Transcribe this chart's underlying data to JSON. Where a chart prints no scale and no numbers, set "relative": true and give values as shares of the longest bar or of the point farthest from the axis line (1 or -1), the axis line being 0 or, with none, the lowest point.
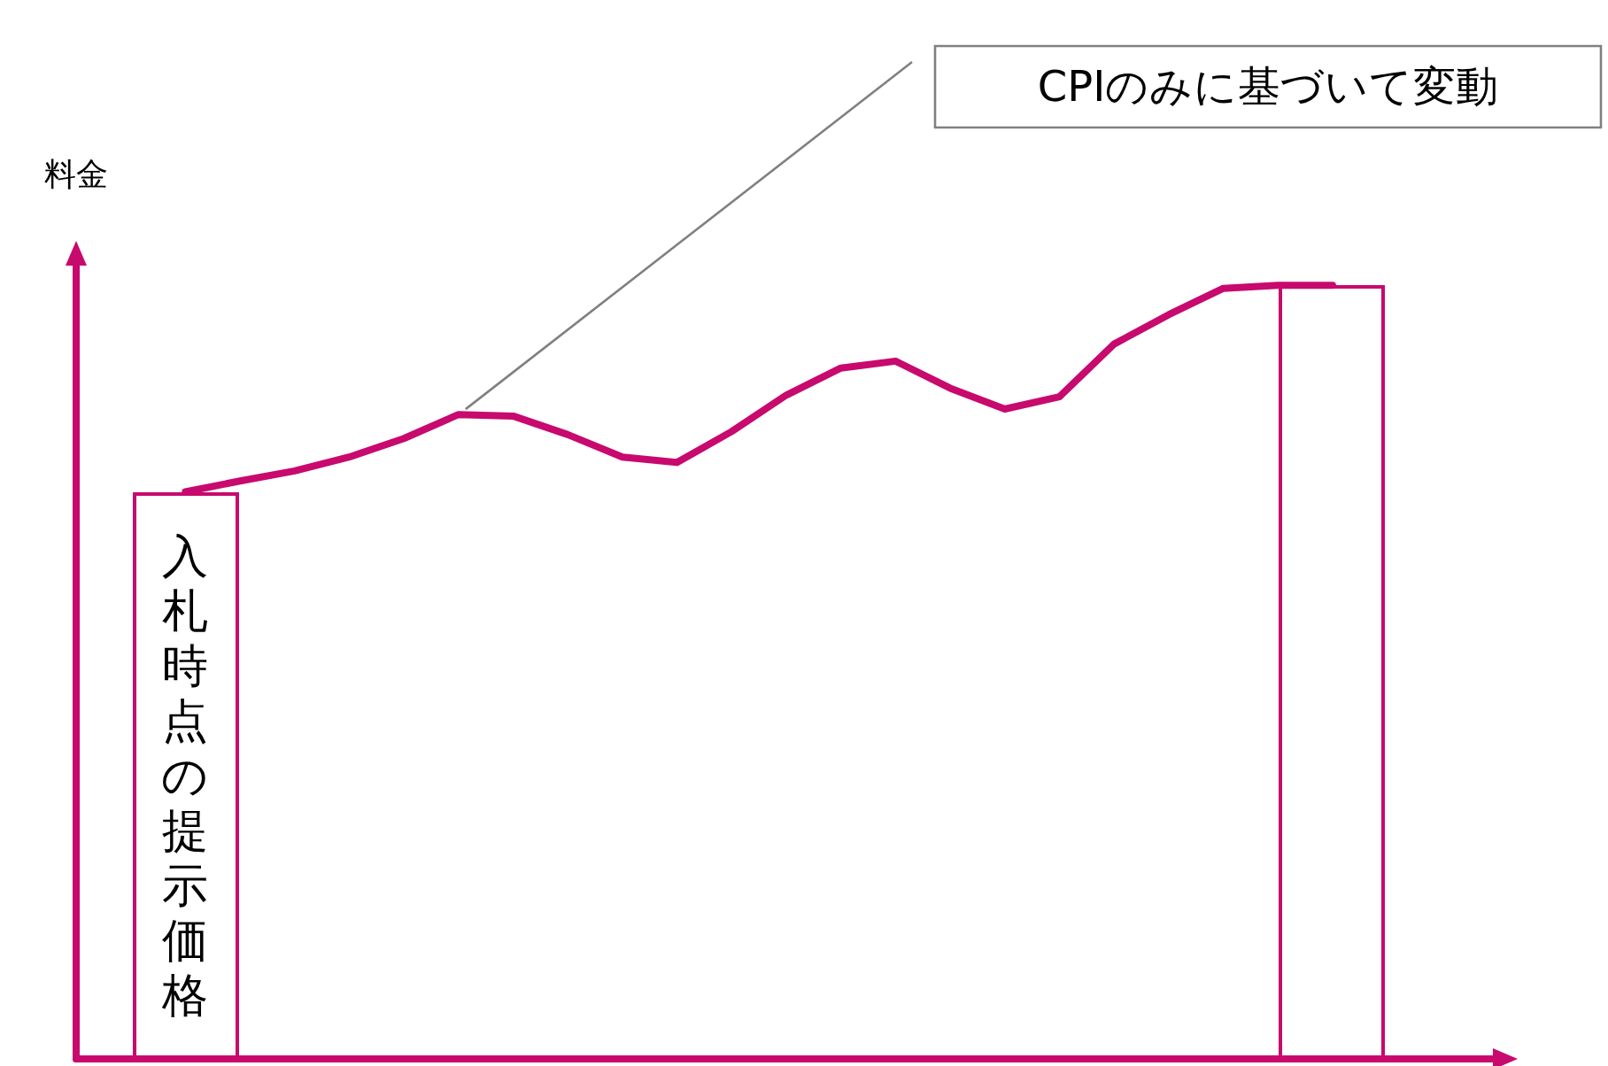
{
  "chart_data": {
    "type": "line",
    "relative": true,
    "ylabel": "料金",
    "tick_labels": false,
    "grid": false,
    "marker": "none",
    "categories": [
      null,
      null,
      null,
      null,
      null,
      null,
      null,
      null,
      null,
      null,
      null,
      null,
      null,
      null,
      null,
      null,
      null,
      null,
      null,
      null,
      null,
      null
    ],
    "series": [
      {
        "color": "#c8096e",
        "values": [
          0.733,
          0.747,
          0.76,
          0.778,
          0.802,
          0.833,
          0.831,
          0.807,
          0.778,
          0.771,
          0.811,
          0.858,
          0.893,
          0.902,
          0.867,
          0.84,
          0.856,
          0.924,
          0.962,
          0.996,
          1.0,
          1.0
        ]
      }
    ],
    "annotations": [
      "入札時点の提示価格",
      "CPIのみに基づいて変動"
    ]
  }
}
